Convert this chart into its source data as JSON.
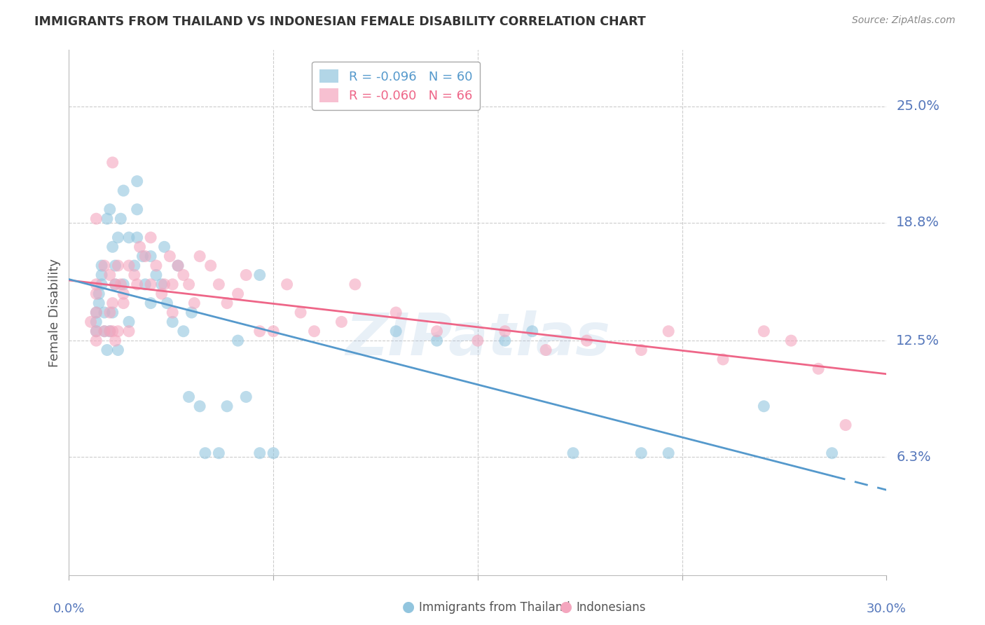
{
  "title": "IMMIGRANTS FROM THAILAND VS INDONESIAN FEMALE DISABILITY CORRELATION CHART",
  "source": "Source: ZipAtlas.com",
  "ylabel": "Female Disability",
  "ytick_labels": [
    "25.0%",
    "18.8%",
    "12.5%",
    "6.3%"
  ],
  "ytick_values": [
    25.0,
    18.8,
    12.5,
    6.3
  ],
  "xlim": [
    0.0,
    30.0
  ],
  "ylim": [
    0.0,
    28.0
  ],
  "legend_series1": "R = -0.096   N = 60",
  "legend_series2": "R = -0.060   N = 66",
  "watermark": "ZIPatlas",
  "blue_color": "#92c5de",
  "pink_color": "#f4a6be",
  "line_blue": "#5599cc",
  "line_pink": "#ee6688",
  "line_blue_dash": "#88bbdd",
  "thailand_x": [
    1.0,
    1.0,
    1.0,
    1.1,
    1.1,
    1.2,
    1.2,
    1.2,
    1.3,
    1.3,
    1.4,
    1.4,
    1.5,
    1.5,
    1.6,
    1.6,
    1.7,
    1.7,
    1.8,
    1.8,
    1.9,
    2.0,
    2.0,
    2.2,
    2.2,
    2.4,
    2.5,
    2.5,
    2.7,
    2.8,
    3.0,
    3.0,
    3.2,
    3.4,
    3.5,
    3.6,
    3.8,
    4.0,
    4.2,
    4.4,
    4.8,
    5.0,
    5.5,
    5.8,
    6.2,
    6.5,
    7.0,
    7.5,
    12.0,
    13.5,
    16.0,
    17.0,
    18.5,
    21.0,
    22.0,
    25.5,
    28.0,
    7.0,
    4.5,
    2.5
  ],
  "thailand_y": [
    13.0,
    13.5,
    14.0,
    14.5,
    15.0,
    15.5,
    16.0,
    16.5,
    13.0,
    14.0,
    12.0,
    19.0,
    13.0,
    19.5,
    14.0,
    17.5,
    15.5,
    16.5,
    12.0,
    18.0,
    19.0,
    15.5,
    20.5,
    13.5,
    18.0,
    16.5,
    19.5,
    21.0,
    17.0,
    15.5,
    14.5,
    17.0,
    16.0,
    15.5,
    17.5,
    14.5,
    13.5,
    16.5,
    13.0,
    9.5,
    9.0,
    6.5,
    6.5,
    9.0,
    12.5,
    9.5,
    6.5,
    6.5,
    13.0,
    12.5,
    12.5,
    13.0,
    6.5,
    6.5,
    6.5,
    9.0,
    6.5,
    16.0,
    14.0,
    18.0
  ],
  "indonesian_x": [
    0.8,
    1.0,
    1.0,
    1.0,
    1.0,
    1.0,
    1.3,
    1.3,
    1.5,
    1.5,
    1.5,
    1.6,
    1.6,
    1.6,
    1.7,
    1.7,
    1.8,
    1.8,
    1.9,
    2.0,
    2.0,
    2.2,
    2.2,
    2.4,
    2.5,
    2.6,
    2.8,
    3.0,
    3.0,
    3.2,
    3.4,
    3.5,
    3.7,
    3.8,
    3.8,
    4.0,
    4.2,
    4.4,
    4.6,
    4.8,
    5.2,
    5.5,
    5.8,
    6.2,
    6.5,
    7.0,
    7.5,
    8.0,
    8.5,
    9.0,
    10.0,
    10.5,
    12.0,
    13.5,
    15.0,
    16.0,
    17.5,
    19.0,
    21.0,
    22.0,
    24.0,
    25.5,
    26.5,
    27.5,
    28.5,
    1.0
  ],
  "indonesian_y": [
    13.5,
    12.5,
    13.0,
    14.0,
    15.0,
    15.5,
    16.5,
    13.0,
    16.0,
    13.0,
    14.0,
    22.0,
    13.0,
    14.5,
    15.5,
    12.5,
    16.5,
    13.0,
    15.5,
    14.5,
    15.0,
    16.5,
    13.0,
    16.0,
    15.5,
    17.5,
    17.0,
    18.0,
    15.5,
    16.5,
    15.0,
    15.5,
    17.0,
    15.5,
    14.0,
    16.5,
    16.0,
    15.5,
    14.5,
    17.0,
    16.5,
    15.5,
    14.5,
    15.0,
    16.0,
    13.0,
    13.0,
    15.5,
    14.0,
    13.0,
    13.5,
    15.5,
    14.0,
    13.0,
    12.5,
    13.0,
    12.0,
    12.5,
    12.0,
    13.0,
    11.5,
    13.0,
    12.5,
    11.0,
    8.0,
    19.0
  ],
  "grid_color": "#cccccc",
  "title_color": "#333333",
  "axis_label_color": "#5577bb",
  "bg_color": "#ffffff"
}
